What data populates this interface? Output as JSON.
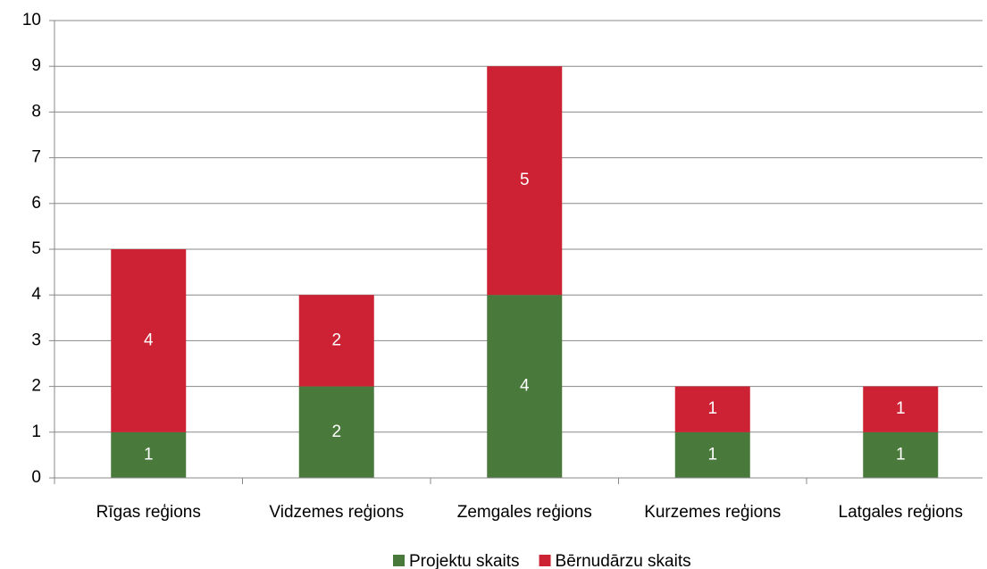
{
  "chart_data": {
    "type": "stacked_bar",
    "categories": [
      "Rīgas reģions",
      "Vidzemes reģions",
      "Zemgales reģions",
      "Kurzemes reģions",
      "Latgales reģions"
    ],
    "series": [
      {
        "name": "Projektu skaits",
        "color": "#4a7a3b",
        "values": [
          1,
          2,
          4,
          1,
          1
        ]
      },
      {
        "name": "Bērnudārzu skaits",
        "color": "#cc2233",
        "values": [
          4,
          2,
          5,
          1,
          1
        ]
      }
    ],
    "ylim": [
      0,
      10
    ],
    "yticks": [
      0,
      1,
      2,
      3,
      4,
      5,
      6,
      7,
      8,
      9,
      10
    ],
    "grid": true,
    "legend": "bottom"
  }
}
